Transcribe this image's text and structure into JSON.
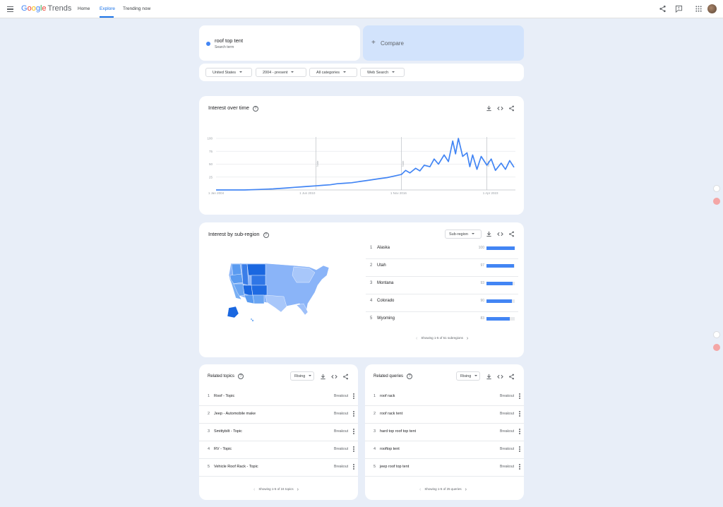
{
  "header": {
    "logo": {
      "g": "G",
      "o1": "o",
      "o2": "o",
      "g2": "g",
      "l": "l",
      "e": "e",
      "trends": "Trends"
    },
    "nav": [
      "Home",
      "Explore",
      "Trending now"
    ],
    "active_nav": "Explore"
  },
  "search": {
    "term": "roof top tent",
    "term_type": "Search term",
    "compare_plus": "+",
    "compare_label": "Compare"
  },
  "filters": {
    "region": "United States",
    "time": "2004 - present",
    "category": "All categories",
    "property": "Web Search"
  },
  "interest_over_time": {
    "title": "Interest over time",
    "help": "?",
    "note_label": "Note"
  },
  "chart_data": {
    "type": "line",
    "title": "Interest over time",
    "series": [
      {
        "name": "roof top tent",
        "color": "#4285f4",
        "x": [
          2004,
          2005,
          2006,
          2007,
          2008,
          2009,
          2009.5,
          2010,
          2010.5,
          2011,
          2011.5,
          2012,
          2012.5,
          2013,
          2013.5,
          2014,
          2014.5,
          2015,
          2015.5,
          2016,
          2016.5,
          2017,
          2017.3,
          2017.6,
          2018,
          2018.3,
          2018.6,
          2019,
          2019.3,
          2019.6,
          2020,
          2020.3,
          2020.6,
          2020.8,
          2021,
          2021.3,
          2021.6,
          2021.8,
          2022,
          2022.3,
          2022.6,
          2023,
          2023.3,
          2023.6,
          2024,
          2024.3,
          2024.6,
          2024.9
        ],
        "values": [
          0,
          0,
          0,
          1,
          2,
          4,
          5,
          6,
          7,
          8,
          9,
          10,
          12,
          13,
          14,
          16,
          18,
          20,
          22,
          24,
          27,
          30,
          38,
          33,
          42,
          37,
          48,
          45,
          60,
          50,
          68,
          55,
          95,
          70,
          100,
          65,
          72,
          45,
          68,
          40,
          65,
          48,
          60,
          38,
          52,
          40,
          57,
          44
        ]
      }
    ],
    "y_ticks": [
      100,
      75,
      50,
      25
    ],
    "x_ticks": [
      "1 Jan 2004",
      "1 Jun 2010",
      "1 Nov 2016",
      "1 Apr 2023"
    ],
    "notes": [
      "Note",
      "Note",
      "Note"
    ],
    "ylim": [
      0,
      100
    ],
    "grid": true
  },
  "subregion": {
    "title": "Interest by sub-region",
    "help": "?",
    "dropdown": "Sub-region",
    "rows": [
      {
        "rank": "1",
        "name": "Alaska",
        "value": 100
      },
      {
        "rank": "2",
        "name": "Utah",
        "value": 97
      },
      {
        "rank": "3",
        "name": "Montana",
        "value": 93
      },
      {
        "rank": "4",
        "name": "Colorado",
        "value": 90
      },
      {
        "rank": "5",
        "name": "Wyoming",
        "value": 83
      }
    ],
    "pager": "Showing 1-5 of 51 subregions"
  },
  "related_topics": {
    "title": "Related topics",
    "help": "?",
    "dropdown": "Rising",
    "rows": [
      {
        "rank": "1",
        "name": "Roof - Topic",
        "value": "Breakout"
      },
      {
        "rank": "2",
        "name": "Jeep - Automobile make",
        "value": "Breakout"
      },
      {
        "rank": "3",
        "name": "Smittybilt - Topic",
        "value": "Breakout"
      },
      {
        "rank": "4",
        "name": "RV - Topic",
        "value": "Breakout"
      },
      {
        "rank": "5",
        "name": "Vehicle Roof Rack - Topic",
        "value": "Breakout"
      }
    ],
    "pager": "Showing 1-5 of 24 topics"
  },
  "related_queries": {
    "title": "Related queries",
    "help": "?",
    "dropdown": "Rising",
    "rows": [
      {
        "rank": "1",
        "name": "roof rack",
        "value": "Breakout"
      },
      {
        "rank": "2",
        "name": "roof rack tent",
        "value": "Breakout"
      },
      {
        "rank": "3",
        "name": "hard top roof top tent",
        "value": "Breakout"
      },
      {
        "rank": "4",
        "name": "rooftop tent",
        "value": "Breakout"
      },
      {
        "rank": "5",
        "name": "jeep roof top tent",
        "value": "Breakout"
      }
    ],
    "pager": "Showing 1-5 of 25 queries"
  },
  "arrows": {
    "prev": "‹",
    "next": "›"
  },
  "colors": {
    "accent": "#1a73e8",
    "series": "#4285f4",
    "compare_bg": "#d2e3fc",
    "page_bg": "#e8eef8"
  }
}
